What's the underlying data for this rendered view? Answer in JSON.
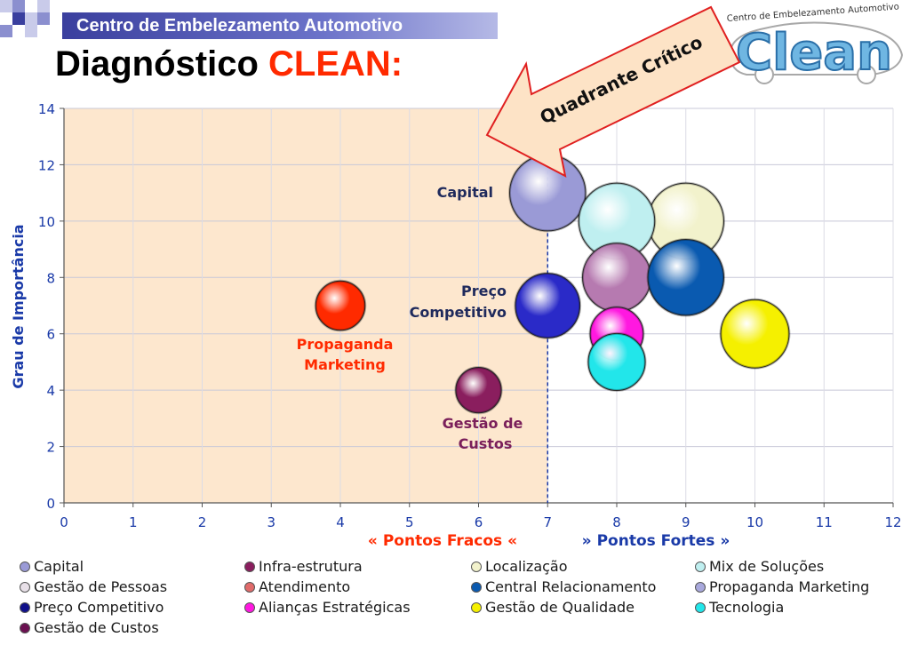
{
  "header": {
    "org_name": "Centro de Embelezamento Automotivo",
    "title_main": "Diagnóstico",
    "title_accent": "CLEAN:",
    "callout": "Quadrante Crítico"
  },
  "logo": {
    "wordmark": "Clean",
    "tagline": "Centro de Embelezamento Automotivo"
  },
  "chart_data": {
    "type": "bubble",
    "ylabel": "Grau de Importância",
    "xlabel_left": "« Pontos Fracos «",
    "xlabel_right": "» Pontos Fortes »",
    "xlim": [
      0,
      12
    ],
    "ylim": [
      0,
      14
    ],
    "x_ticks": [
      "0",
      "1",
      "2",
      "3",
      "4",
      "5",
      "6",
      "7",
      "8",
      "9",
      "10",
      "11",
      "12"
    ],
    "y_ticks": [
      "0",
      "2",
      "4",
      "6",
      "8",
      "10",
      "12",
      "14"
    ],
    "grid": true,
    "critical_quadrant": {
      "x_max": 7,
      "y_max": 14
    },
    "reference_line_x": 7,
    "series": [
      {
        "name": "Localização",
        "x": 9,
        "y": 10,
        "size": 1.0,
        "color": "#f2f2cc"
      },
      {
        "name": "Capital",
        "x": 7,
        "y": 11,
        "size": 1.0,
        "color": "#9a9ad6"
      },
      {
        "name": "Mix de Soluções",
        "x": 8,
        "y": 10,
        "size": 1.0,
        "color": "#bfeff0"
      },
      {
        "name": "Gestão de Pessoas",
        "x": 8,
        "y": 8,
        "size": 0.9,
        "color": "#b67ab0"
      },
      {
        "name": "Central Relacionamento",
        "x": 9,
        "y": 8,
        "size": 1.0,
        "color": "#0a5ab0"
      },
      {
        "name": "Gestão de Qualidade",
        "x": 10,
        "y": 6,
        "size": 0.9,
        "color": "#f5f000"
      },
      {
        "name": "Alianças Estratégicas",
        "x": 8,
        "y": 6,
        "size": 0.7,
        "color": "#ff18e0"
      },
      {
        "name": "Tecnologia",
        "x": 8,
        "y": 5,
        "size": 0.75,
        "color": "#22e6ea"
      },
      {
        "name": "Preço Competitivo",
        "x": 7,
        "y": 7,
        "size": 0.85,
        "color": "#2a2ac8"
      },
      {
        "name": "Propaganda Marketing",
        "x": 4,
        "y": 7,
        "size": 0.65,
        "color": "#ff2a00"
      },
      {
        "name": "Gestão de Custos",
        "x": 6,
        "y": 4,
        "size": 0.6,
        "color": "#8a1e5e"
      }
    ],
    "annotations": [
      {
        "text": "Capital",
        "color": "#1f2a5c"
      },
      {
        "text": "Preço",
        "color": "#1f2a5c"
      },
      {
        "text": "Competitivo",
        "color": "#1f2a5c"
      },
      {
        "text": "Propaganda",
        "color": "#ff2a00"
      },
      {
        "text": "Marketing",
        "color": "#ff2a00"
      },
      {
        "text": "Gestão de",
        "color": "#7a1f5a"
      },
      {
        "text": "Custos",
        "color": "#7a1f5a"
      }
    ]
  },
  "legend": [
    {
      "label": "Capital",
      "color": "#9a9ad6"
    },
    {
      "label": "Infra-estrutura",
      "color": "#8a1e5e"
    },
    {
      "label": "Localização",
      "color": "#f2f2cc"
    },
    {
      "label": "Mix de Soluções",
      "color": "#bfeff0"
    },
    {
      "label": "Gestão de Pessoas",
      "color": "#e8e0e8"
    },
    {
      "label": "Atendimento",
      "color": "#e06a6a"
    },
    {
      "label": "Central Relacionamento",
      "color": "#0a5ab0"
    },
    {
      "label": "Propaganda Marketing",
      "color": "#a8a8dc"
    },
    {
      "label": "Preço Competitivo",
      "color": "#10108a"
    },
    {
      "label": "Alianças Estratégicas",
      "color": "#ff18e0"
    },
    {
      "label": "Gestão de Qualidade",
      "color": "#f5f000"
    },
    {
      "label": "Tecnologia",
      "color": "#22e6ea"
    },
    {
      "label": "Gestão de Custos",
      "color": "#6a1050"
    }
  ]
}
